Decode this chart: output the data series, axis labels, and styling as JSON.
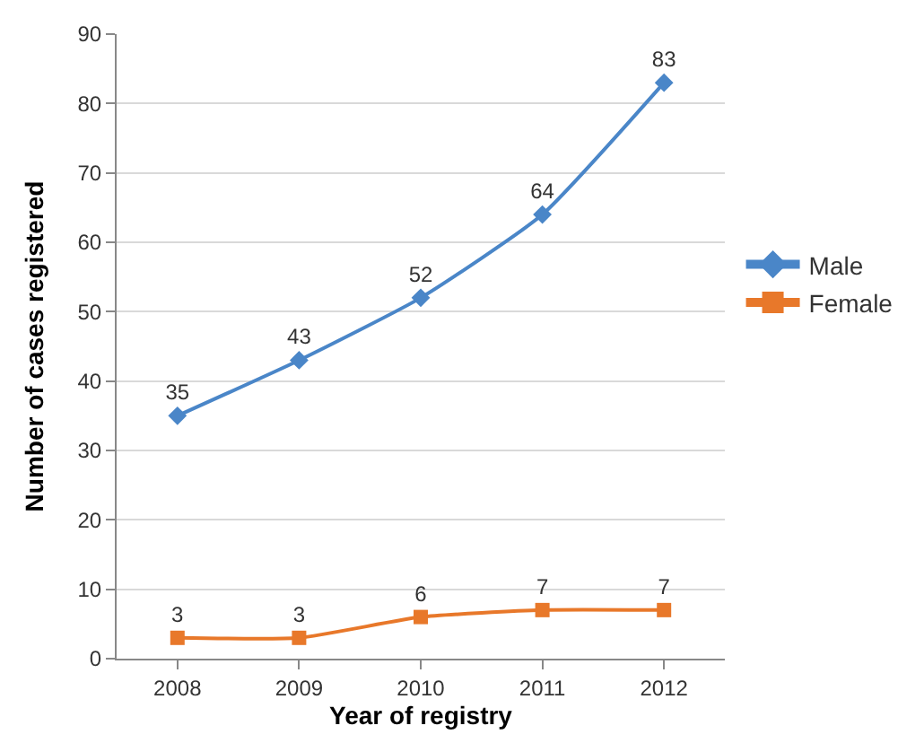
{
  "chart_data": {
    "type": "line",
    "xlabel": "Year of registry",
    "ylabel": "Number of cases registered",
    "categories": [
      "2008",
      "2009",
      "2010",
      "2011",
      "2012"
    ],
    "series": [
      {
        "name": "Male",
        "color": "#4a86c8",
        "marker": "diamond",
        "values": [
          35,
          43,
          52,
          64,
          83
        ]
      },
      {
        "name": "Female",
        "color": "#e8782a",
        "marker": "square",
        "values": [
          3,
          3,
          6,
          7,
          7
        ]
      }
    ],
    "ylim": [
      0,
      90
    ],
    "yticks": [
      0,
      10,
      20,
      30,
      40,
      50,
      60,
      70,
      80,
      90
    ],
    "grid": "y",
    "legend": "right",
    "data_labels": true,
    "line_style": "solid"
  }
}
